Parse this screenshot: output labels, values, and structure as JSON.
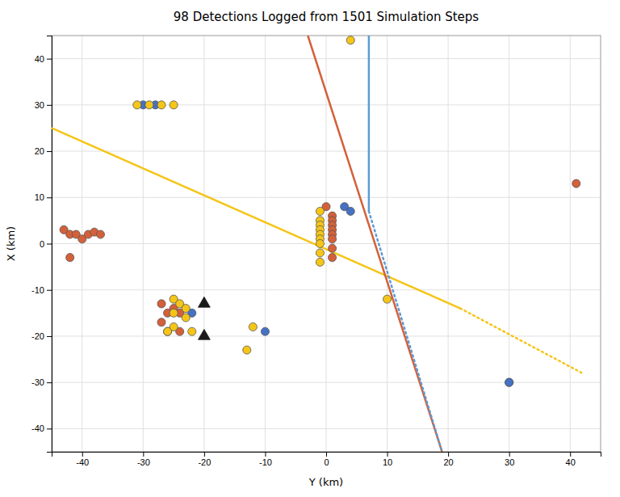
{
  "chart_data": {
    "type": "scatter",
    "title": "98 Detections Logged from 1501 Simulation Steps",
    "xlabel": "Y (km)",
    "ylabel": "X (km)",
    "xlim": [
      -45,
      45
    ],
    "ylim": [
      -45,
      45
    ],
    "xticks": [
      -40,
      -30,
      -20,
      -10,
      0,
      10,
      20,
      30,
      40
    ],
    "yticks": [
      -40,
      -30,
      -20,
      -10,
      0,
      10,
      20,
      30,
      40
    ],
    "grid": true,
    "series": [
      {
        "type": "line",
        "x": [
          -45,
          22
        ],
        "values": [
          25,
          -14
        ],
        "color": "#f5c518",
        "line_style": "solid"
      },
      {
        "type": "line",
        "x": [
          22,
          42
        ],
        "values": [
          -14,
          -28
        ],
        "color": "#f5c518",
        "line_style": "dotted"
      },
      {
        "type": "line",
        "x": [
          -3,
          19
        ],
        "values": [
          45,
          -45
        ],
        "color": "#d4603a",
        "line_style": "solid"
      },
      {
        "type": "line",
        "x": [
          7,
          7
        ],
        "values": [
          45,
          7
        ],
        "color": "#5b9bd5",
        "line_style": "solid"
      },
      {
        "type": "line",
        "x": [
          7,
          19
        ],
        "values": [
          7,
          -45
        ],
        "color": "#5b9bd5",
        "line_style": "dotted"
      },
      {
        "type": "scatter",
        "marker": "circle",
        "color": "#d4603a",
        "x": [
          -43,
          -42,
          -41,
          -40,
          -39,
          -38,
          -37,
          -42,
          -27,
          -25,
          -24,
          -26,
          -27,
          -26,
          -24,
          0,
          1,
          1,
          1,
          1,
          1,
          1,
          1,
          1,
          41,
          30
        ],
        "values": [
          3,
          2,
          2,
          1,
          2,
          2.5,
          2,
          -3,
          -13,
          -14,
          -15,
          -15,
          -17,
          -19,
          -19,
          8,
          6,
          5,
          4,
          3,
          2,
          1,
          -1,
          -3,
          13,
          -30
        ]
      },
      {
        "type": "scatter",
        "marker": "circle",
        "color": "#4472c4",
        "x": [
          -30,
          -28,
          -22,
          -10,
          3,
          4,
          30
        ],
        "values": [
          30,
          30,
          -15,
          -19,
          8,
          7,
          -30
        ]
      },
      {
        "type": "scatter",
        "marker": "circle",
        "color": "#f5c518",
        "x": [
          -31,
          -29,
          -27,
          -25,
          -25,
          -24,
          -23,
          -25,
          -23,
          -25,
          -26,
          -22,
          -12,
          -13,
          -1,
          -1,
          -1,
          -1,
          -1,
          -1,
          -1,
          -1,
          -1,
          10,
          4
        ],
        "values": [
          30,
          30,
          30,
          30,
          -12,
          -13,
          -14,
          -15,
          -16,
          -18,
          -19,
          -19,
          -18,
          -23,
          7,
          5,
          4,
          3,
          2,
          1,
          0,
          -2,
          -4,
          -12,
          44
        ]
      },
      {
        "type": "scatter",
        "marker": "triangle",
        "color": "#1a1a1a",
        "x": [
          -20,
          -20
        ],
        "values": [
          -13,
          -20
        ]
      }
    ]
  }
}
